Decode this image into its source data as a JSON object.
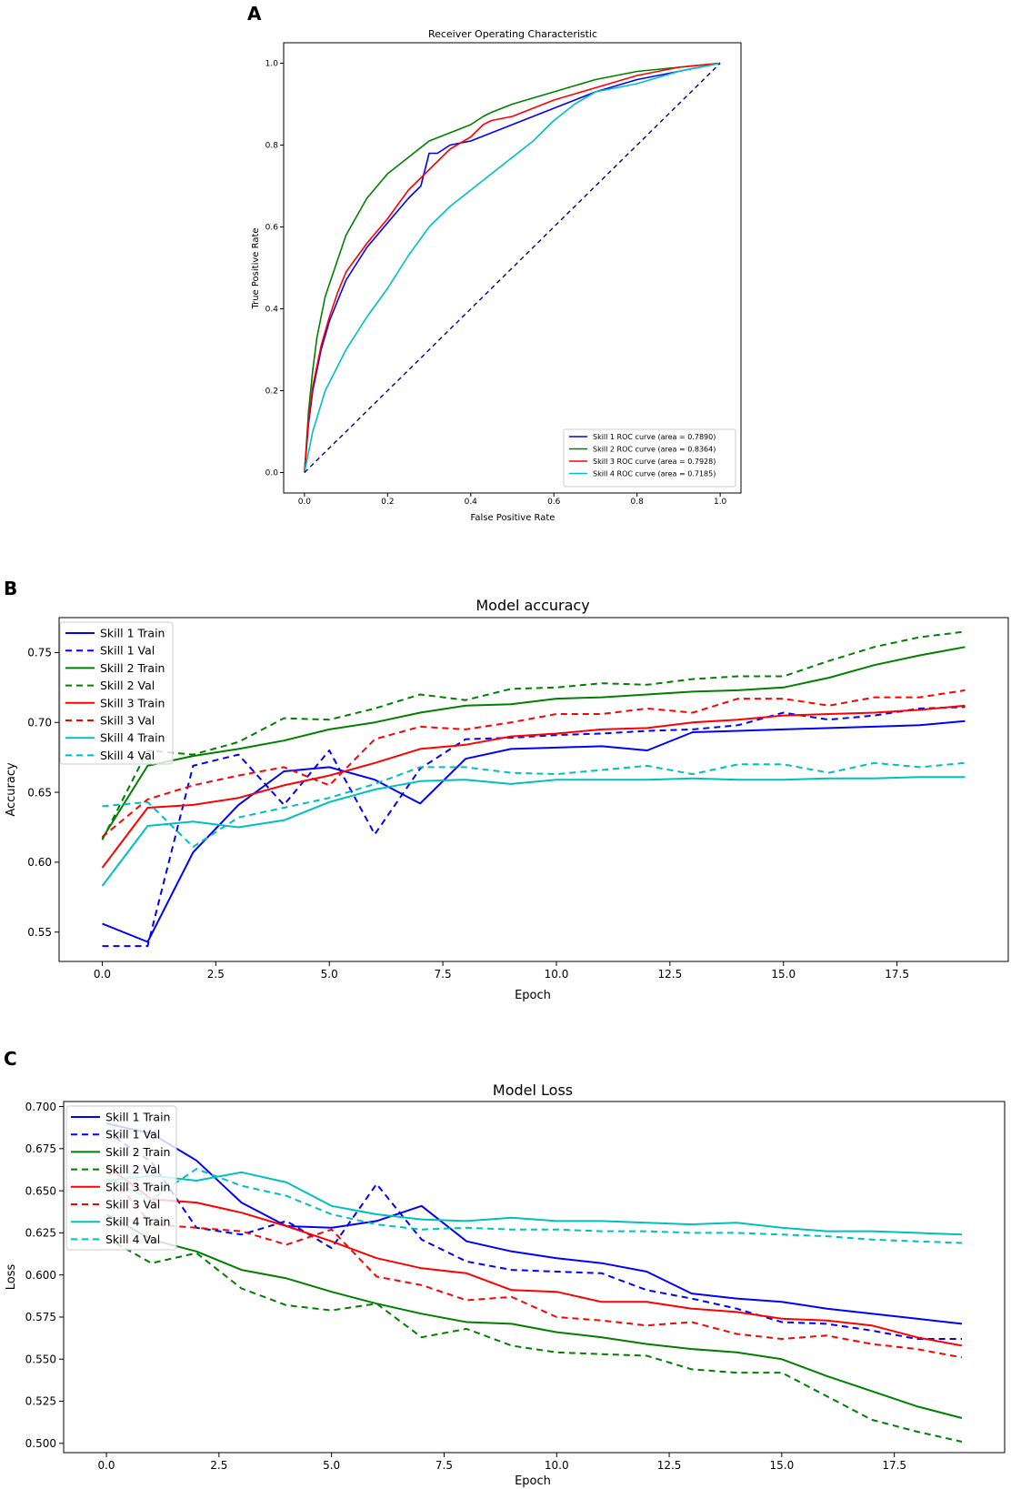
{
  "colors": {
    "blue": "#0000ff",
    "green": "#007f00",
    "red": "#ff0000",
    "cyan": "#00bfbf",
    "navy": "#000080"
  },
  "chart_data": [
    {
      "panel_label": "A",
      "type": "line",
      "title": "Receiver Operating Characteristic",
      "xlabel": "False Positive Rate",
      "ylabel": "True Positive Rate",
      "xlim": [
        -0.05,
        1.05
      ],
      "ylim": [
        -0.05,
        1.05
      ],
      "xticks": [
        "0.0",
        "0.2",
        "0.4",
        "0.6",
        "0.8",
        "1.0"
      ],
      "yticks": [
        "0.0",
        "0.2",
        "0.4",
        "0.6",
        "0.8",
        "1.0"
      ],
      "legend_position": "bottom-right",
      "series": [
        {
          "name": "Skill 1 ROC curve (area = 0.7890)",
          "color": "blue",
          "dash": false,
          "x": [
            0,
            0.01,
            0.02,
            0.04,
            0.06,
            0.08,
            0.1,
            0.15,
            0.2,
            0.25,
            0.28,
            0.3,
            0.32,
            0.35,
            0.4,
            0.45,
            0.5,
            0.6,
            0.7,
            0.8,
            0.9,
            1.0
          ],
          "y": [
            0,
            0.12,
            0.2,
            0.3,
            0.37,
            0.42,
            0.47,
            0.55,
            0.61,
            0.67,
            0.7,
            0.78,
            0.78,
            0.8,
            0.81,
            0.83,
            0.85,
            0.89,
            0.93,
            0.96,
            0.98,
            1.0
          ]
        },
        {
          "name": "Skill 2 ROC curve (area = 0.8364)",
          "color": "green",
          "dash": false,
          "x": [
            0,
            0.01,
            0.02,
            0.03,
            0.05,
            0.08,
            0.1,
            0.15,
            0.2,
            0.25,
            0.3,
            0.35,
            0.4,
            0.43,
            0.45,
            0.5,
            0.6,
            0.7,
            0.8,
            0.9,
            1.0
          ],
          "y": [
            0,
            0.15,
            0.25,
            0.33,
            0.43,
            0.52,
            0.58,
            0.67,
            0.73,
            0.77,
            0.81,
            0.83,
            0.85,
            0.87,
            0.88,
            0.9,
            0.93,
            0.96,
            0.98,
            0.99,
            1.0
          ]
        },
        {
          "name": "Skill 3 ROC curve (area = 0.7928)",
          "color": "red",
          "dash": false,
          "x": [
            0,
            0.01,
            0.02,
            0.04,
            0.06,
            0.08,
            0.1,
            0.15,
            0.2,
            0.25,
            0.3,
            0.35,
            0.4,
            0.43,
            0.45,
            0.5,
            0.6,
            0.7,
            0.8,
            0.9,
            1.0
          ],
          "y": [
            0,
            0.13,
            0.21,
            0.31,
            0.38,
            0.44,
            0.49,
            0.56,
            0.62,
            0.69,
            0.74,
            0.79,
            0.82,
            0.85,
            0.86,
            0.87,
            0.91,
            0.94,
            0.97,
            0.99,
            1.0
          ]
        },
        {
          "name": "Skill 4 ROC curve (area = 0.7185)",
          "color": "cyan",
          "dash": false,
          "x": [
            0,
            0.02,
            0.05,
            0.08,
            0.1,
            0.15,
            0.2,
            0.25,
            0.3,
            0.35,
            0.4,
            0.45,
            0.5,
            0.55,
            0.6,
            0.65,
            0.7,
            0.8,
            0.9,
            1.0
          ],
          "y": [
            0,
            0.1,
            0.2,
            0.26,
            0.3,
            0.38,
            0.45,
            0.53,
            0.6,
            0.65,
            0.69,
            0.73,
            0.77,
            0.81,
            0.86,
            0.9,
            0.93,
            0.95,
            0.98,
            1.0
          ]
        },
        {
          "name": "",
          "color": "navy",
          "dash": true,
          "x": [
            0,
            1.0
          ],
          "y": [
            0,
            1.0
          ]
        }
      ]
    },
    {
      "panel_label": "B",
      "type": "line",
      "title": "Model accuracy",
      "xlabel": "Epoch",
      "ylabel": "Accuracy",
      "xlim": [
        -0.95,
        19.95
      ],
      "ylim": [
        0.529,
        0.775
      ],
      "xticks": [
        "0.0",
        "2.5",
        "5.0",
        "7.5",
        "10.0",
        "12.5",
        "15.0",
        "17.5"
      ],
      "yticks": [
        "0.55",
        "0.60",
        "0.65",
        "0.70",
        "0.75"
      ],
      "legend_position": "top-left",
      "x": [
        0,
        1,
        2,
        3,
        4,
        5,
        6,
        7,
        8,
        9,
        10,
        11,
        12,
        13,
        14,
        15,
        16,
        17,
        18,
        19
      ],
      "series": [
        {
          "name": "Skill 1 Train",
          "color": "blue",
          "dash": false,
          "values": [
            0.556,
            0.543,
            0.607,
            0.641,
            0.665,
            0.668,
            0.659,
            0.642,
            0.674,
            0.681,
            0.682,
            0.683,
            0.68,
            0.693,
            0.694,
            0.695,
            0.696,
            0.697,
            0.698,
            0.701
          ]
        },
        {
          "name": "Skill 1 Val",
          "color": "blue",
          "dash": true,
          "values": [
            0.54,
            0.54,
            0.669,
            0.677,
            0.641,
            0.68,
            0.62,
            0.667,
            0.688,
            0.689,
            0.691,
            0.692,
            0.694,
            0.695,
            0.698,
            0.707,
            0.702,
            0.705,
            0.71,
            0.711
          ]
        },
        {
          "name": "Skill 2 Train",
          "color": "green",
          "dash": false,
          "values": [
            0.617,
            0.669,
            0.676,
            0.681,
            0.687,
            0.695,
            0.7,
            0.707,
            0.712,
            0.713,
            0.717,
            0.718,
            0.72,
            0.722,
            0.723,
            0.725,
            0.732,
            0.741,
            0.748,
            0.754
          ]
        },
        {
          "name": "Skill 2 Val",
          "color": "green",
          "dash": true,
          "values": [
            0.616,
            0.68,
            0.677,
            0.686,
            0.703,
            0.702,
            0.71,
            0.72,
            0.716,
            0.724,
            0.725,
            0.728,
            0.727,
            0.731,
            0.733,
            0.733,
            0.744,
            0.754,
            0.761,
            0.765
          ]
        },
        {
          "name": "Skill 3 Train",
          "color": "red",
          "dash": false,
          "values": [
            0.596,
            0.639,
            0.641,
            0.646,
            0.655,
            0.662,
            0.671,
            0.681,
            0.684,
            0.69,
            0.692,
            0.695,
            0.696,
            0.7,
            0.702,
            0.705,
            0.706,
            0.707,
            0.709,
            0.712
          ]
        },
        {
          "name": "Skill 3 Val",
          "color": "red",
          "dash": true,
          "values": [
            0.618,
            0.645,
            0.655,
            0.662,
            0.668,
            0.655,
            0.688,
            0.697,
            0.695,
            0.7,
            0.706,
            0.706,
            0.71,
            0.707,
            0.717,
            0.717,
            0.712,
            0.718,
            0.718,
            0.723
          ]
        },
        {
          "name": "Skill 4 Train",
          "color": "cyan",
          "dash": false,
          "values": [
            0.583,
            0.626,
            0.629,
            0.625,
            0.63,
            0.643,
            0.652,
            0.658,
            0.659,
            0.656,
            0.659,
            0.659,
            0.659,
            0.66,
            0.659,
            0.659,
            0.66,
            0.66,
            0.661,
            0.661
          ]
        },
        {
          "name": "Skill 4 Val",
          "color": "cyan",
          "dash": true,
          "values": [
            0.64,
            0.643,
            0.611,
            0.632,
            0.639,
            0.646,
            0.656,
            0.668,
            0.668,
            0.664,
            0.663,
            0.666,
            0.669,
            0.663,
            0.67,
            0.67,
            0.664,
            0.671,
            0.668,
            0.671
          ]
        }
      ]
    },
    {
      "panel_label": "C",
      "type": "line",
      "title": "Model Loss",
      "xlabel": "Epoch",
      "ylabel": "Loss",
      "xlim": [
        -0.95,
        19.95
      ],
      "ylim": [
        0.4945,
        0.703
      ],
      "xticks": [
        "0.0",
        "2.5",
        "5.0",
        "7.5",
        "10.0",
        "12.5",
        "15.0",
        "17.5"
      ],
      "yticks": [
        "0.500",
        "0.525",
        "0.550",
        "0.575",
        "0.600",
        "0.625",
        "0.650",
        "0.675",
        "0.700"
      ],
      "legend_position": "top-left",
      "x": [
        0,
        1,
        2,
        3,
        4,
        5,
        6,
        7,
        8,
        9,
        10,
        11,
        12,
        13,
        14,
        15,
        16,
        17,
        18,
        19
      ],
      "series": [
        {
          "name": "Skill 1 Train",
          "color": "blue",
          "dash": false,
          "values": [
            0.69,
            0.684,
            0.668,
            0.643,
            0.629,
            0.628,
            0.632,
            0.641,
            0.62,
            0.614,
            0.61,
            0.607,
            0.602,
            0.589,
            0.586,
            0.584,
            0.58,
            0.577,
            0.574,
            0.571
          ]
        },
        {
          "name": "Skill 1 Val",
          "color": "blue",
          "dash": true,
          "values": [
            0.685,
            0.667,
            0.628,
            0.624,
            0.632,
            0.616,
            0.654,
            0.621,
            0.608,
            0.603,
            0.602,
            0.601,
            0.591,
            0.586,
            0.58,
            0.572,
            0.571,
            0.567,
            0.562,
            0.562
          ]
        },
        {
          "name": "Skill 2 Train",
          "color": "green",
          "dash": false,
          "values": [
            0.636,
            0.621,
            0.614,
            0.603,
            0.598,
            0.59,
            0.583,
            0.577,
            0.572,
            0.571,
            0.566,
            0.563,
            0.559,
            0.556,
            0.554,
            0.55,
            0.54,
            0.531,
            0.522,
            0.515
          ]
        },
        {
          "name": "Skill 2 Val",
          "color": "green",
          "dash": true,
          "values": [
            0.622,
            0.607,
            0.613,
            0.592,
            0.582,
            0.579,
            0.583,
            0.563,
            0.568,
            0.558,
            0.554,
            0.553,
            0.552,
            0.544,
            0.542,
            0.542,
            0.528,
            0.514,
            0.507,
            0.501
          ]
        },
        {
          "name": "Skill 3 Train",
          "color": "red",
          "dash": false,
          "values": [
            0.665,
            0.645,
            0.643,
            0.637,
            0.629,
            0.62,
            0.61,
            0.604,
            0.601,
            0.591,
            0.59,
            0.584,
            0.584,
            0.58,
            0.578,
            0.574,
            0.573,
            0.57,
            0.563,
            0.558
          ]
        },
        {
          "name": "Skill 3 Val",
          "color": "red",
          "dash": true,
          "values": [
            0.662,
            0.63,
            0.628,
            0.626,
            0.618,
            0.627,
            0.599,
            0.594,
            0.585,
            0.587,
            0.575,
            0.573,
            0.57,
            0.572,
            0.565,
            0.562,
            0.564,
            0.559,
            0.556,
            0.551
          ]
        },
        {
          "name": "Skill 4 Train",
          "color": "cyan",
          "dash": false,
          "values": [
            0.656,
            0.659,
            0.656,
            0.661,
            0.655,
            0.641,
            0.636,
            0.633,
            0.632,
            0.634,
            0.632,
            0.632,
            0.631,
            0.63,
            0.631,
            0.628,
            0.626,
            0.626,
            0.625,
            0.624
          ]
        },
        {
          "name": "Skill 4 Val",
          "color": "cyan",
          "dash": true,
          "values": [
            0.657,
            0.645,
            0.663,
            0.653,
            0.647,
            0.636,
            0.63,
            0.627,
            0.628,
            0.627,
            0.627,
            0.626,
            0.626,
            0.625,
            0.625,
            0.624,
            0.623,
            0.621,
            0.62,
            0.619
          ]
        }
      ]
    }
  ]
}
